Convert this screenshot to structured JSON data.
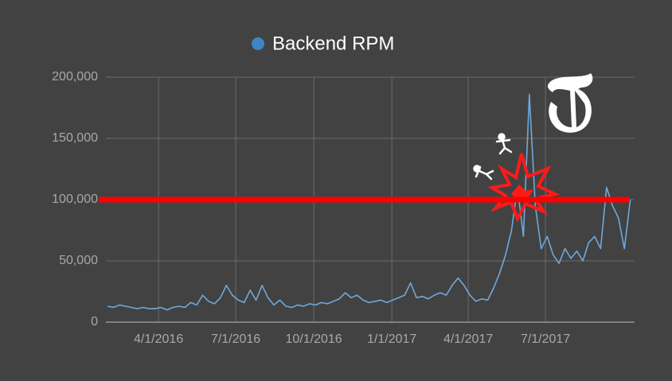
{
  "chart_data": {
    "type": "line",
    "background": "#424242",
    "grid": true,
    "legend_position": "top",
    "x": [
      "2/1/2016",
      "2/8/2016",
      "2/15/2016",
      "2/22/2016",
      "2/29/2016",
      "3/7/2016",
      "3/14/2016",
      "3/21/2016",
      "3/28/2016",
      "4/4/2016",
      "4/11/2016",
      "4/18/2016",
      "4/25/2016",
      "5/2/2016",
      "5/9/2016",
      "5/16/2016",
      "5/23/2016",
      "5/30/2016",
      "6/6/2016",
      "6/13/2016",
      "6/20/2016",
      "6/27/2016",
      "7/4/2016",
      "7/11/2016",
      "7/18/2016",
      "7/25/2016",
      "8/1/2016",
      "8/8/2016",
      "8/15/2016",
      "8/22/2016",
      "8/29/2016",
      "9/5/2016",
      "9/12/2016",
      "9/19/2016",
      "9/26/2016",
      "10/3/2016",
      "10/10/2016",
      "10/17/2016",
      "10/24/2016",
      "10/31/2016",
      "11/7/2016",
      "11/14/2016",
      "11/21/2016",
      "11/28/2016",
      "12/5/2016",
      "12/12/2016",
      "12/19/2016",
      "12/26/2016",
      "1/2/2017",
      "1/9/2017",
      "1/16/2017",
      "1/23/2017",
      "1/30/2017",
      "2/6/2017",
      "2/13/2017",
      "2/20/2017",
      "2/27/2017",
      "3/6/2017",
      "3/13/2017",
      "3/20/2017",
      "3/27/2017",
      "4/3/2017",
      "4/10/2017",
      "4/17/2017",
      "4/24/2017",
      "5/1/2017",
      "5/8/2017",
      "5/15/2017",
      "5/22/2017",
      "5/29/2017",
      "6/5/2017",
      "6/12/2017",
      "6/19/2017",
      "6/26/2017",
      "7/3/2017",
      "7/10/2017",
      "7/17/2017",
      "7/24/2017",
      "7/31/2017",
      "8/7/2017",
      "8/14/2017",
      "8/21/2017",
      "8/28/2017",
      "9/4/2017",
      "9/11/2017",
      "9/18/2017",
      "9/25/2017",
      "10/2/2017",
      "10/9/2017"
    ],
    "series": [
      {
        "name": "Backend RPM",
        "color": "#6fa8dc",
        "legend_color": "#3d85c6",
        "values": [
          13000,
          12000,
          14000,
          13000,
          12000,
          11000,
          12000,
          11000,
          11000,
          12000,
          10000,
          12000,
          13000,
          12000,
          16000,
          14000,
          22000,
          17000,
          15000,
          20000,
          30000,
          22000,
          18000,
          16000,
          26000,
          18000,
          30000,
          20000,
          14000,
          18000,
          13000,
          12000,
          14000,
          13000,
          15000,
          14000,
          16000,
          15000,
          17000,
          19000,
          24000,
          20000,
          22000,
          18000,
          16000,
          17000,
          18000,
          16000,
          18000,
          20000,
          22000,
          32000,
          20000,
          21000,
          19000,
          22000,
          24000,
          22000,
          30000,
          36000,
          30000,
          22000,
          17000,
          19000,
          18000,
          28000,
          40000,
          55000,
          75000,
          110000,
          70000,
          186000,
          95000,
          60000,
          70000,
          55000,
          48000,
          60000,
          52000,
          58000,
          50000,
          65000,
          70000,
          60000,
          110000,
          95000,
          85000,
          60000,
          100000
        ]
      }
    ],
    "xlim": [
      "1/30/2016",
      "10/14/2017"
    ],
    "xticks": [
      "4/1/2016",
      "7/1/2016",
      "10/1/2016",
      "1/1/2017",
      "4/1/2017",
      "7/1/2017"
    ],
    "ylim": [
      0,
      200000
    ],
    "yticks": [
      0,
      {
        "value": 50000,
        "label": "50,000"
      },
      {
        "value": 100000,
        "label": "100,000"
      },
      {
        "value": 150000,
        "label": "150,000"
      },
      {
        "value": 200000,
        "label": "200,000"
      }
    ],
    "reference_line": {
      "value": 100000,
      "color": "#ff0000"
    }
  }
}
